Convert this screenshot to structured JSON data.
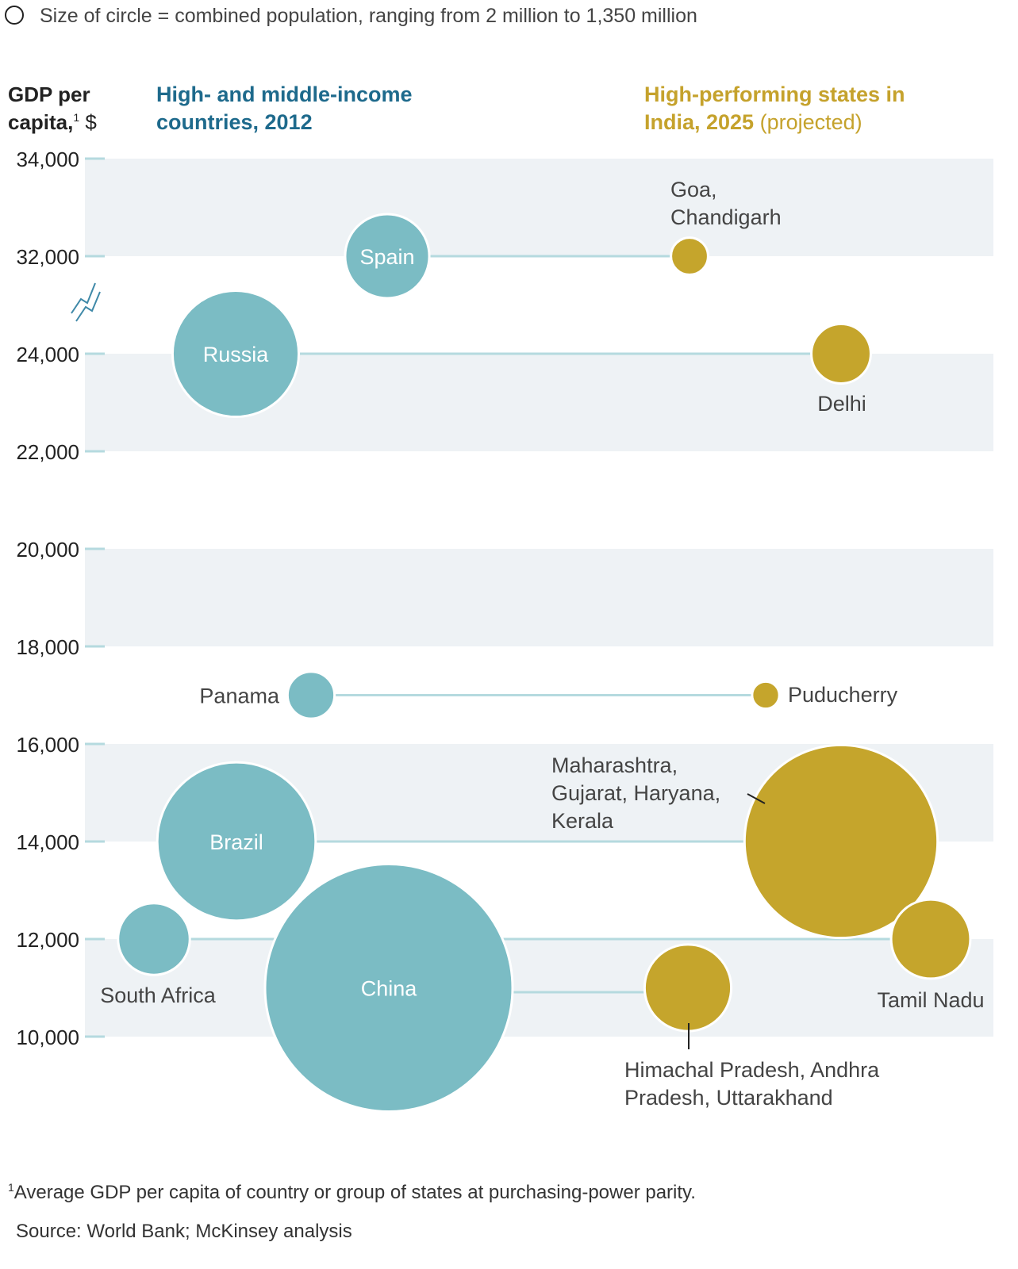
{
  "legend_note": "Size of circle = combined population, ranging from 2 million to 1,350 million",
  "footnote_marker": "1",
  "footnote": "Average GDP per capita of country or group of states at purchasing-power parity.",
  "source": "Source: World Bank; McKinsey analysis",
  "colors": {
    "countries": "#7BBCC4",
    "states": "#C5A52C",
    "band": "#EEF2F5",
    "connector": "#B5DADF",
    "title_blue": "#1E6A8C",
    "title_gold": "#C5A22C"
  },
  "chart_data": {
    "type": "scatter",
    "ylabel_line1": "GDP per",
    "ylabel_line2": "capita,",
    "ylabel_sup": "1",
    "ylabel_unit": " $",
    "group_countries": {
      "line1": "High- and middle-income",
      "line2": "countries, 2012"
    },
    "group_states": {
      "line1": "High-performing states in",
      "line2": "India, 2025",
      "line2_suffix": " (projected)"
    },
    "yticks": [
      "34,000",
      "32,000",
      "24,000",
      "22,000",
      "20,000",
      "18,000",
      "16,000",
      "14,000",
      "12,000",
      "10,000"
    ],
    "ytick_values": [
      34000,
      32000,
      24000,
      22000,
      20000,
      18000,
      16000,
      14000,
      12000,
      10000
    ],
    "axis_break": "between 32,000 and 24,000",
    "size_scale_note": "relative circle size (1 = largest)",
    "pairs": [
      {
        "country": {
          "name": "Spain",
          "gdp": 32000,
          "size": 0.34
        },
        "state": {
          "name_lines": [
            "Goa,",
            "Chandigarh"
          ],
          "gdp": 32000,
          "size": 0.15
        }
      },
      {
        "country": {
          "name": "Russia",
          "gdp": 24000,
          "size": 0.51
        },
        "state": {
          "name_lines": [
            "Delhi"
          ],
          "gdp": 24000,
          "size": 0.24
        }
      },
      {
        "country": {
          "name": "Panama",
          "gdp": 17000,
          "size": 0.19
        },
        "state": {
          "name_lines": [
            "Puducherry"
          ],
          "gdp": 17000,
          "size": 0.11
        }
      },
      {
        "country": {
          "name": "Brazil",
          "gdp": 14000,
          "size": 0.64
        },
        "state": {
          "name_lines": [
            "Maharashtra,",
            "Gujarat, Haryana,",
            "Kerala"
          ],
          "gdp": 14000,
          "size": 0.78
        }
      },
      {
        "country": {
          "name": "South Africa",
          "gdp": 12000,
          "size": 0.29
        },
        "state": {
          "name_lines": [
            "Tamil Nadu"
          ],
          "gdp": 12000,
          "size": 0.32
        }
      },
      {
        "country": {
          "name": "China",
          "gdp": 11000,
          "size": 1.0
        },
        "state": {
          "name_lines": [
            "Himachal Pradesh, Andhra",
            "Pradesh, Uttarakhand"
          ],
          "gdp": 11000,
          "size": 0.35
        }
      }
    ]
  }
}
